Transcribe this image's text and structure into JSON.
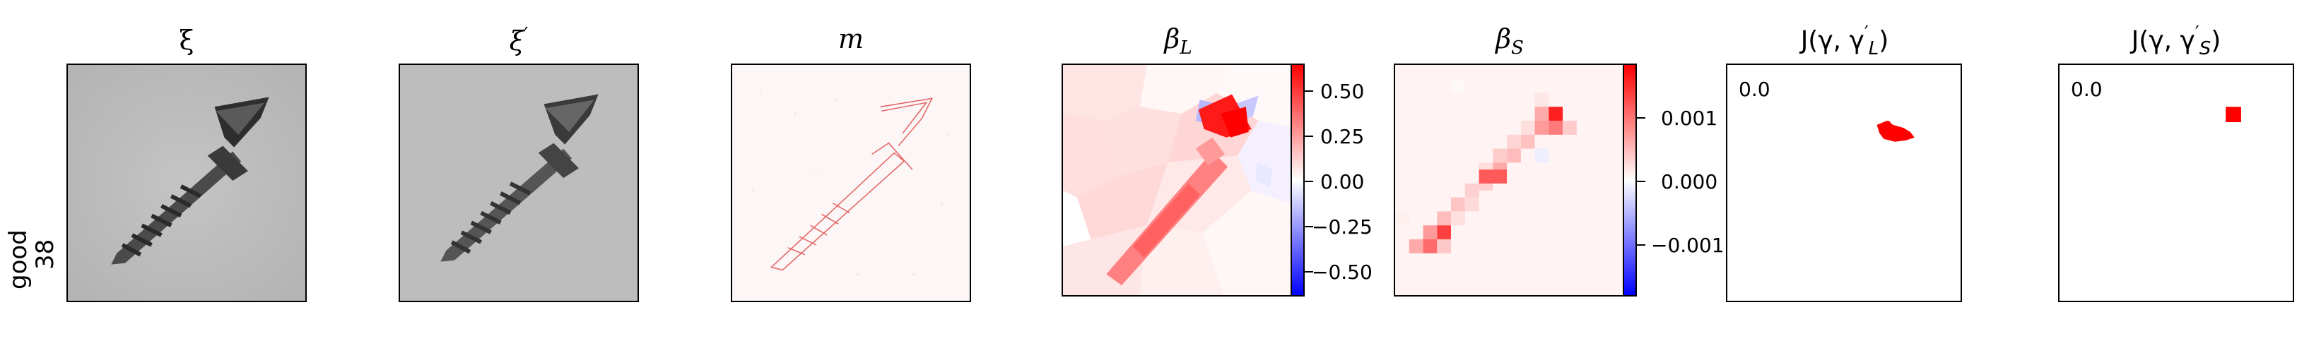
{
  "row": {
    "label_line1": "good",
    "label_line2": "38"
  },
  "panels": {
    "xi": {
      "title": "ξ"
    },
    "xi_prime": {
      "title_base": "ξ",
      "title_prime": "′"
    },
    "m": {
      "title": "m"
    },
    "beta_L": {
      "title_base": "β",
      "title_sub": "L",
      "colorbar_ticks": [
        "0.50",
        "0.25",
        "0.00",
        "−0.25",
        "−0.50"
      ]
    },
    "beta_S": {
      "title_base": "β",
      "title_sub": "S",
      "colorbar_ticks": [
        "0.001",
        "0.000",
        "−0.001"
      ]
    },
    "J_L": {
      "title_prefix": "J(γ, γ",
      "title_sup": "′",
      "title_sub": "L",
      "title_suffix": ")",
      "value": "0.0"
    },
    "J_S": {
      "title_prefix": "J(γ, γ",
      "title_sup": "′",
      "title_sub": "S",
      "title_suffix": ")",
      "value": "0.0"
    }
  },
  "colors": {
    "positive": "#ff0000",
    "negative": "#0000ff",
    "neutral": "#ffffff",
    "frame": "#000000"
  }
}
